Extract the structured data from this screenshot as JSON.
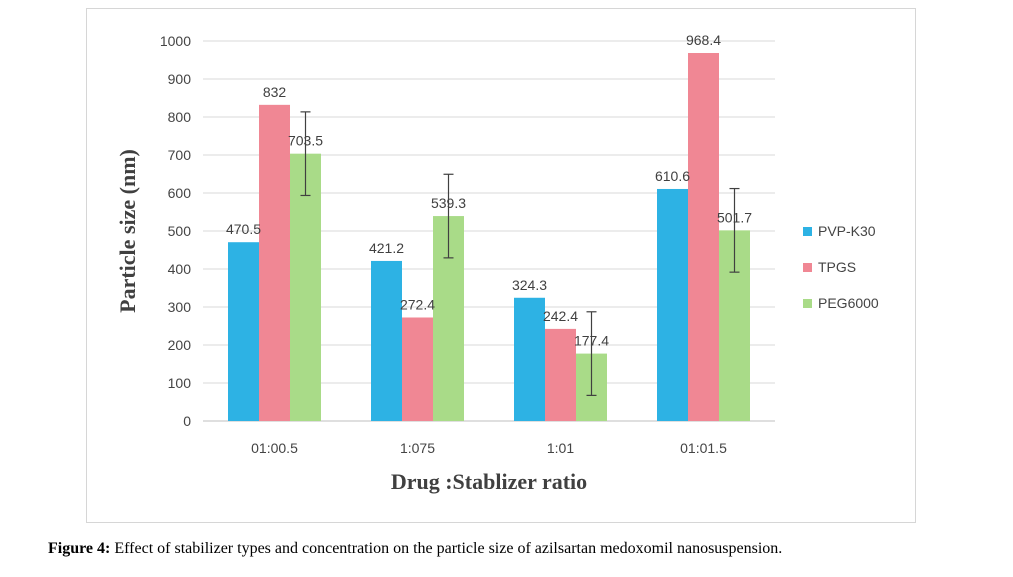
{
  "caption": {
    "label": "Figure 4:",
    "text": " Effect of stabilizer types and concentration on the particle size of azilsartan medoxomil nanosuspension."
  },
  "chart_data": {
    "type": "bar",
    "categories": [
      "01:00.5",
      "1:075",
      "1:01",
      "01:01.5"
    ],
    "series": [
      {
        "name": "PVP-K30",
        "color": "#2DB2E4",
        "values": [
          470.5,
          421.2,
          324.3,
          610.6
        ],
        "labels": [
          "470.5",
          "421.2",
          "324.3",
          "610.6"
        ]
      },
      {
        "name": "TPGS",
        "color": "#F08794",
        "values": [
          832,
          272.4,
          242.4,
          968.4
        ],
        "labels": [
          "832",
          "272.4",
          "242.4",
          "968.4"
        ]
      },
      {
        "name": "PEG6000",
        "color": "#A9DB88",
        "values": [
          703.5,
          539.3,
          177.4,
          501.7
        ],
        "labels": [
          "703.5",
          "539.3",
          "177.4",
          "501.7"
        ]
      }
    ],
    "error_bars": {
      "series": "PEG6000",
      "plus_minus": [
        110,
        110,
        110,
        110
      ]
    },
    "xlabel": "Drug :Stablizer ratio",
    "ylabel": "Particle size (nm)",
    "ylim": [
      0,
      1000
    ],
    "yticks": [
      0,
      100,
      200,
      300,
      400,
      500,
      600,
      700,
      800,
      900,
      1000
    ],
    "grid": true,
    "legend_position": "right"
  }
}
